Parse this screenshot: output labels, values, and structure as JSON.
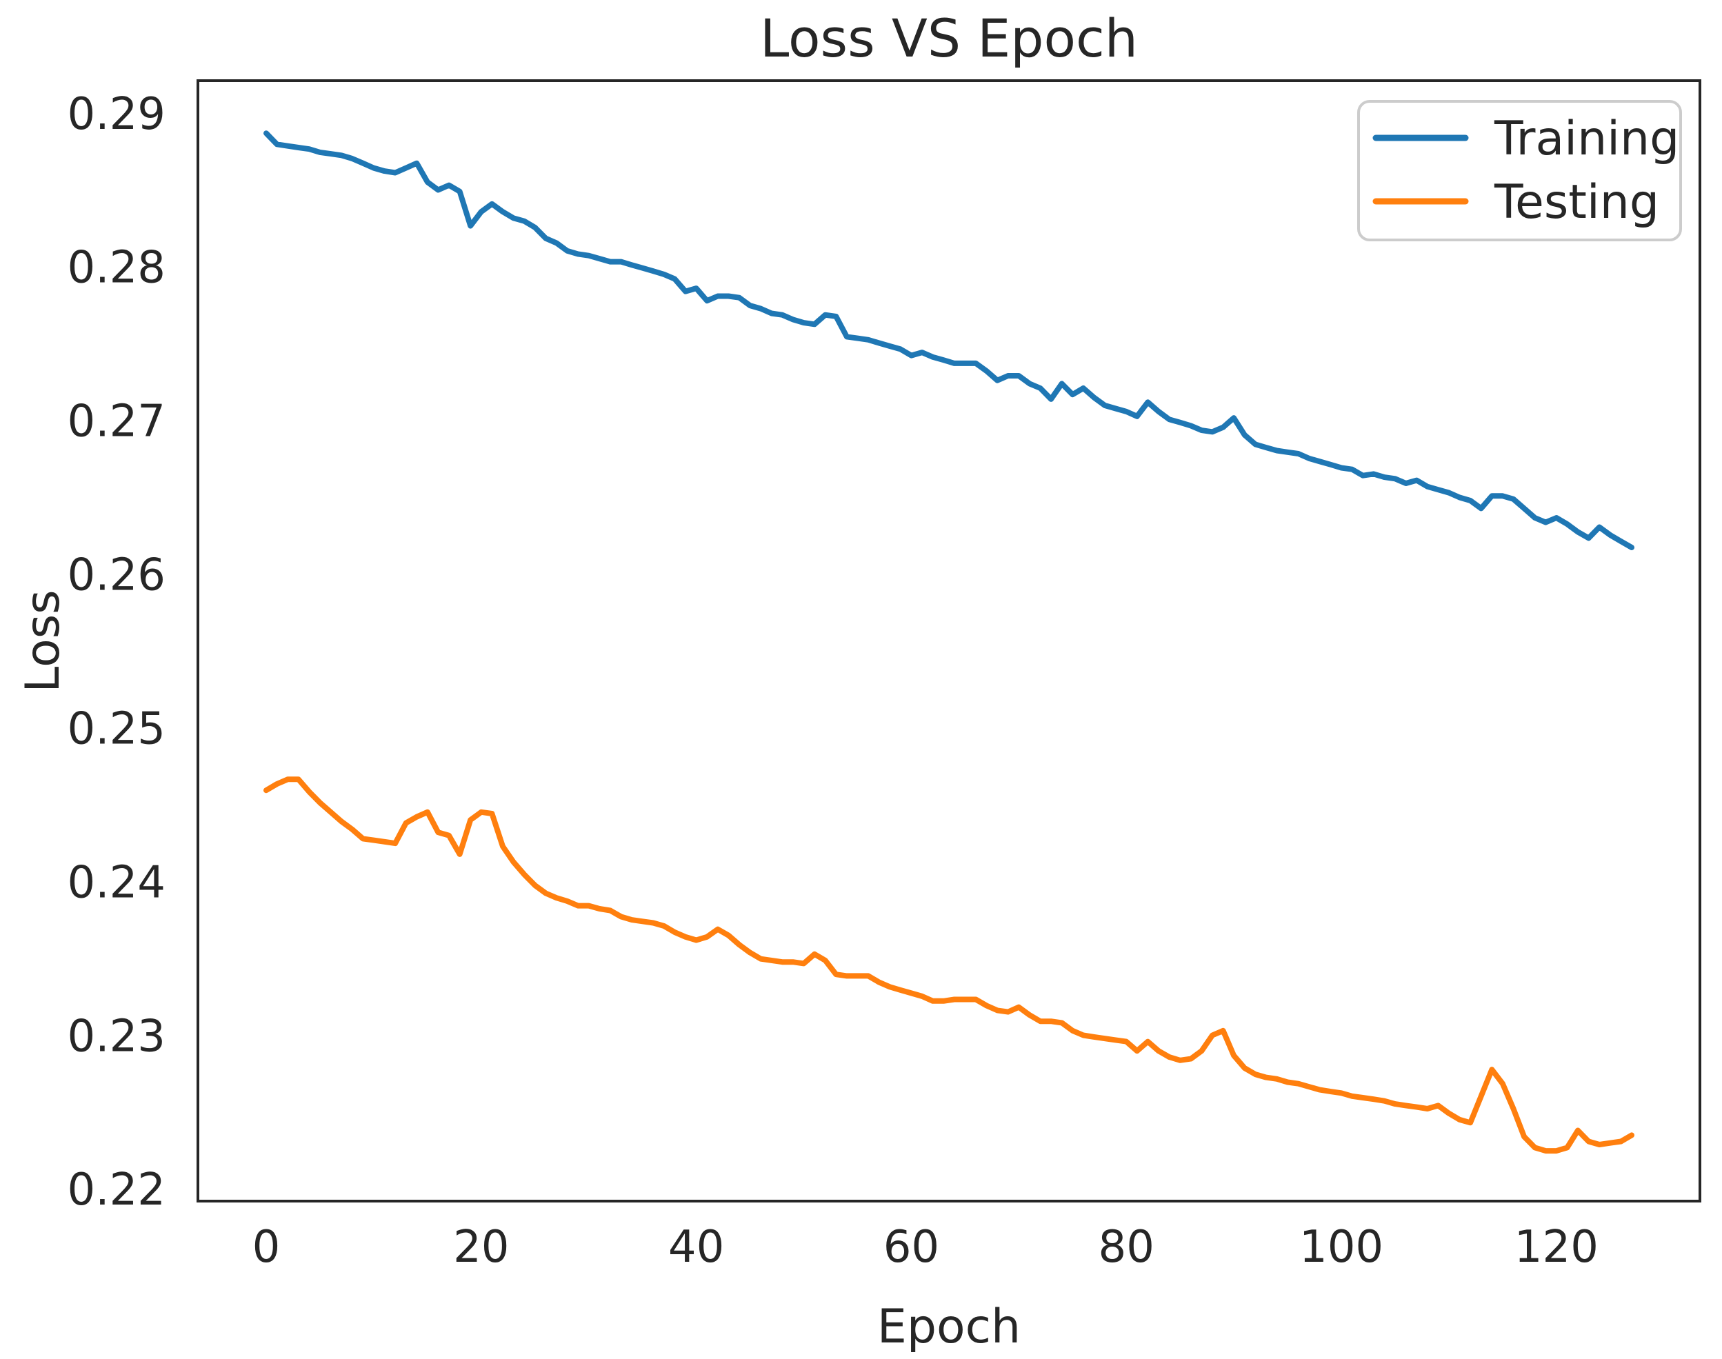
{
  "figure": {
    "background": "#ffffff",
    "text_color": "#262626",
    "spine_color": "#262626",
    "legend_border_color": "#cccccc"
  },
  "chart_data": {
    "type": "line",
    "title": "Loss VS Epoch",
    "xlabel": "Epoch",
    "ylabel": "Loss",
    "grid": false,
    "legend_position": "upper right",
    "xlim": [
      -6.35,
      133.35
    ],
    "ylim": [
      0.2192,
      0.2921
    ],
    "xticks": [
      0,
      20,
      40,
      60,
      80,
      100,
      120
    ],
    "yticks": [
      0.22,
      0.23,
      0.24,
      0.25,
      0.26,
      0.27,
      0.28,
      0.29
    ],
    "x": {
      "start": 0,
      "step": 1,
      "count": 128
    },
    "series": [
      {
        "name": "Training",
        "color": "#1f77b4",
        "values": [
          0.28868,
          0.28796,
          0.28785,
          0.28775,
          0.28765,
          0.28744,
          0.28734,
          0.28724,
          0.28703,
          0.28673,
          0.28642,
          0.28622,
          0.28611,
          0.28642,
          0.28673,
          0.2855,
          0.28499,
          0.2853,
          0.28489,
          0.28265,
          0.28357,
          0.28408,
          0.28357,
          0.28316,
          0.28296,
          0.28255,
          0.28184,
          0.28154,
          0.28103,
          0.28082,
          0.28072,
          0.28052,
          0.28032,
          0.28032,
          0.28011,
          0.27991,
          0.27971,
          0.2795,
          0.2792,
          0.27839,
          0.27859,
          0.27778,
          0.27808,
          0.27808,
          0.27798,
          0.27747,
          0.27727,
          0.27696,
          0.27686,
          0.27656,
          0.27635,
          0.27625,
          0.27686,
          0.27676,
          0.27544,
          0.27534,
          0.27524,
          0.27503,
          0.27483,
          0.27463,
          0.27422,
          0.27442,
          0.27412,
          0.27392,
          0.27371,
          0.27371,
          0.27371,
          0.27321,
          0.2726,
          0.2729,
          0.2729,
          0.27239,
          0.27209,
          0.27138,
          0.27239,
          0.27168,
          0.27209,
          0.27148,
          0.27097,
          0.27077,
          0.27057,
          0.27026,
          0.27118,
          0.27057,
          0.27006,
          0.26986,
          0.26965,
          0.26935,
          0.26925,
          0.26955,
          0.27016,
          0.26905,
          0.26844,
          0.26823,
          0.26803,
          0.26793,
          0.26783,
          0.26752,
          0.26732,
          0.26712,
          0.26691,
          0.26681,
          0.26641,
          0.26651,
          0.2663,
          0.2662,
          0.2659,
          0.2661,
          0.26569,
          0.26549,
          0.26529,
          0.26498,
          0.26478,
          0.26427,
          0.26508,
          0.26508,
          0.26488,
          0.26427,
          0.26366,
          0.26336,
          0.26366,
          0.26325,
          0.26274,
          0.26234,
          0.26305,
          0.26254,
          0.26213,
          0.26173
        ]
      },
      {
        "name": "Testing",
        "color": "#ff7f0e",
        "values": [
          0.24593,
          0.24634,
          0.24664,
          0.24664,
          0.24583,
          0.24512,
          0.24451,
          0.2439,
          0.24339,
          0.24278,
          0.24268,
          0.24258,
          0.24248,
          0.2438,
          0.2442,
          0.24451,
          0.24319,
          0.24299,
          0.24177,
          0.244,
          0.24451,
          0.24441,
          0.24228,
          0.24126,
          0.24045,
          0.23974,
          0.23923,
          0.23893,
          0.23872,
          0.23842,
          0.23842,
          0.23822,
          0.23811,
          0.23771,
          0.2375,
          0.2374,
          0.2373,
          0.2371,
          0.23669,
          0.23639,
          0.23618,
          0.23639,
          0.23689,
          0.23649,
          0.23588,
          0.23537,
          0.23496,
          0.23486,
          0.23476,
          0.23476,
          0.23466,
          0.23527,
          0.23486,
          0.23395,
          0.23385,
          0.23385,
          0.23385,
          0.23344,
          0.23314,
          0.23293,
          0.23273,
          0.23253,
          0.23222,
          0.23222,
          0.23232,
          0.23232,
          0.23232,
          0.23192,
          0.23161,
          0.23151,
          0.23182,
          0.23131,
          0.2309,
          0.2309,
          0.2308,
          0.23029,
          0.22999,
          0.22988,
          0.22978,
          0.22968,
          0.22958,
          0.22897,
          0.22958,
          0.22897,
          0.22857,
          0.22836,
          0.22846,
          0.22897,
          0.22999,
          0.23029,
          0.22867,
          0.22786,
          0.22745,
          0.22725,
          0.22715,
          0.22694,
          0.22684,
          0.22664,
          0.22644,
          0.22633,
          0.22623,
          0.22603,
          0.22593,
          0.22583,
          0.22572,
          0.22552,
          0.22542,
          0.22532,
          0.22521,
          0.22542,
          0.22491,
          0.2245,
          0.2243,
          0.22603,
          0.22776,
          0.22684,
          0.22521,
          0.22339,
          0.22268,
          0.22247,
          0.22247,
          0.22268,
          0.2238,
          0.22308,
          0.22288,
          0.22298,
          0.22308,
          0.22349
        ]
      }
    ]
  }
}
